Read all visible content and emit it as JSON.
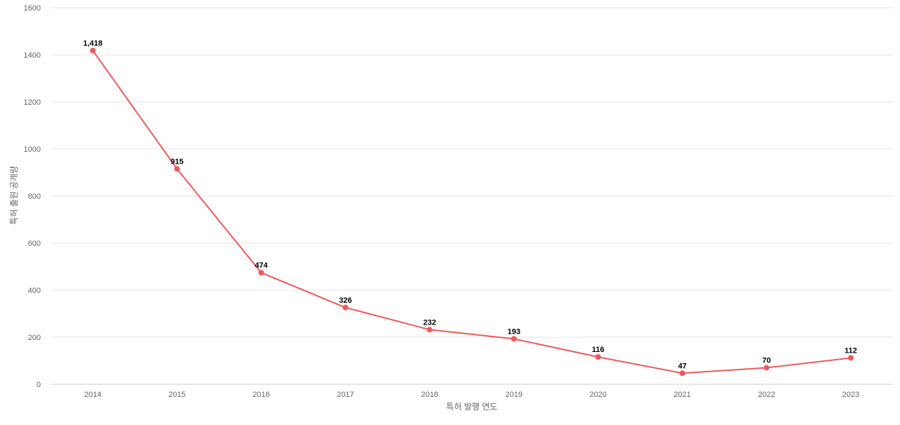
{
  "chart_data": {
    "type": "line",
    "title": "",
    "xlabel": "특허 발행 연도",
    "ylabel": "특허 출원 공개량",
    "categories": [
      "2014",
      "2015",
      "2016",
      "2017",
      "2018",
      "2019",
      "2020",
      "2021",
      "2022",
      "2023"
    ],
    "series": [
      {
        "values": [
          1418,
          915,
          474,
          326,
          232,
          193,
          116,
          47,
          70,
          112
        ],
        "labels": [
          "1,418",
          "915",
          "474",
          "326",
          "232",
          "193",
          "116",
          "47",
          "70",
          "112"
        ]
      }
    ],
    "ylim": [
      0,
      1600
    ],
    "yticks": [
      0,
      200,
      400,
      600,
      800,
      1000,
      1200,
      1400,
      1600
    ],
    "grid": true,
    "legend": "none",
    "line_color": "#ef5a5a"
  }
}
